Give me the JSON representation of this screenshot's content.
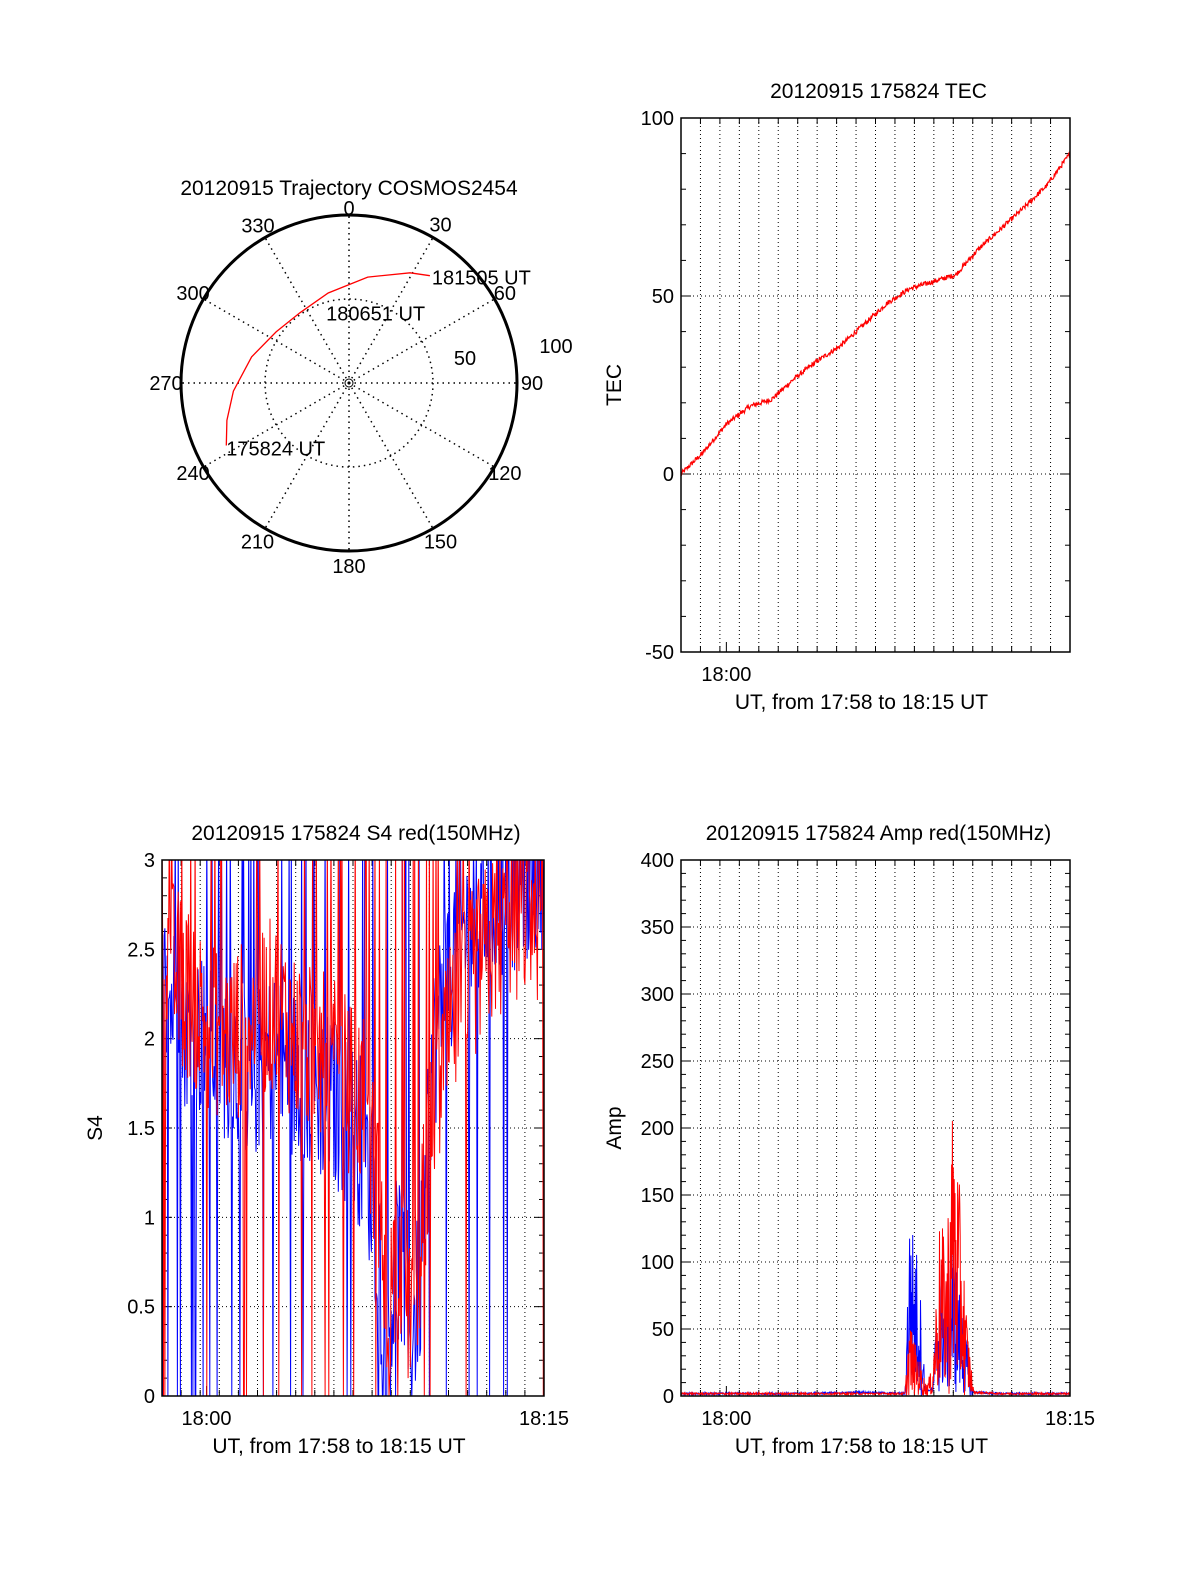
{
  "colors": {
    "red": "#ff0000",
    "blue": "#0000ff",
    "axis": "#000000",
    "grid": "#000000"
  },
  "chart_data": [
    {
      "type": "polar",
      "title": "20120915 Trajectory COSMOS2454",
      "angle_labels": [
        "0",
        "30",
        "60",
        "90",
        "120",
        "150",
        "180",
        "210",
        "240",
        "270",
        "300",
        "330"
      ],
      "radius_label": "50",
      "radius_max_label": "100",
      "grid": true,
      "series": [
        {
          "color": "red",
          "points": [
            {
              "az": 243,
              "r": 82
            },
            {
              "az": 253,
              "r": 76
            },
            {
              "az": 266,
              "r": 69
            },
            {
              "az": 285,
              "r": 60
            },
            {
              "az": 305,
              "r": 53
            },
            {
              "az": 325,
              "r": 51
            },
            {
              "az": 347,
              "r": 55
            },
            {
              "az": 10,
              "r": 64
            },
            {
              "az": 29,
              "r": 75
            },
            {
              "az": 37,
              "r": 80
            }
          ]
        }
      ],
      "annotations": [
        {
          "text": "181505 UT",
          "az": 37,
          "r": 80
        },
        {
          "text": "180651 UT",
          "az": 342,
          "r": 44
        },
        {
          "text": "175824 UT",
          "az": 243,
          "r": 82
        }
      ]
    },
    {
      "type": "line",
      "title": "20120915 175824 TEC",
      "xlabel": "UT, from 17:58 to 18:15 UT",
      "ylabel": "TEC",
      "xlim": [
        17.967,
        18.25
      ],
      "ylim": [
        -50,
        100
      ],
      "yticks": [
        -50,
        0,
        50,
        100
      ],
      "x_tick_labels": [
        {
          "t": 18.0,
          "label": "18:00"
        }
      ],
      "grid": true,
      "series": [
        {
          "color": "red",
          "x": [
            17.967,
            17.983,
            18.0,
            18.017,
            18.033,
            18.05,
            18.067,
            18.083,
            18.1,
            18.117,
            18.133,
            18.15,
            18.167,
            18.183,
            18.2,
            18.217,
            18.233,
            18.25
          ],
          "y": [
            0,
            6,
            14,
            19,
            21,
            27,
            32,
            36,
            42,
            48,
            52,
            54,
            56,
            63,
            69,
            75,
            81,
            90
          ]
        }
      ]
    },
    {
      "type": "line",
      "title": "20120915 175824 S4 red(150MHz)",
      "xlabel": "UT, from 17:58 to 18:15 UT",
      "ylabel": "S4",
      "xlim": [
        17.967,
        18.25
      ],
      "ylim": [
        0,
        3
      ],
      "yticks": [
        0,
        0.5,
        1,
        1.5,
        2,
        2.5,
        3
      ],
      "x_tick_labels": [
        {
          "t": 18.0,
          "label": "18:00"
        },
        {
          "t": 18.25,
          "label": "18:15"
        }
      ],
      "grid": true,
      "series": [
        {
          "color": "blue",
          "x": [
            17.967,
            17.983,
            18.0,
            18.017,
            18.033,
            18.05,
            18.067,
            18.083,
            18.1,
            18.117,
            18.125,
            18.133,
            18.142,
            18.15,
            18.158,
            18.167,
            18.183,
            18.2,
            18.217,
            18.233,
            18.25
          ],
          "y": [
            2.3,
            2.1,
            2.0,
            1.9,
            1.8,
            1.9,
            1.8,
            1.7,
            1.6,
            1.4,
            1.0,
            0.3,
            0.8,
            0.3,
            0.6,
            1.9,
            2.5,
            2.7,
            2.8,
            2.9,
            3.0
          ]
        },
        {
          "color": "red",
          "x": [
            17.967,
            17.983,
            18.0,
            18.017,
            18.033,
            18.05,
            18.067,
            18.083,
            18.1,
            18.117,
            18.125,
            18.133,
            18.142,
            18.15,
            18.158,
            18.167,
            18.183,
            18.2,
            18.217,
            18.233,
            18.25
          ],
          "y": [
            2.5,
            2.3,
            2.1,
            2.0,
            2.1,
            2.2,
            2.0,
            1.9,
            1.8,
            1.6,
            1.3,
            0.4,
            0.9,
            0.5,
            0.8,
            1.6,
            2.1,
            2.4,
            2.6,
            2.7,
            2.7
          ]
        }
      ]
    },
    {
      "type": "line",
      "title": "20120915 175824 Amp red(150MHz)",
      "xlabel": "UT, from 17:58 to 18:15 UT",
      "ylabel": "Amp",
      "xlim": [
        17.967,
        18.25
      ],
      "ylim": [
        0,
        400
      ],
      "yticks": [
        0,
        50,
        100,
        150,
        200,
        250,
        300,
        350,
        400
      ],
      "x_tick_labels": [
        {
          "t": 18.0,
          "label": "18:00"
        },
        {
          "t": 18.25,
          "label": "18:15"
        }
      ],
      "grid": true,
      "series": [
        {
          "color": "blue",
          "x": [
            17.967,
            18.0,
            18.05,
            18.1,
            18.13,
            18.133,
            18.137,
            18.14,
            18.145,
            18.15,
            18.155,
            18.16,
            18.165,
            18.17,
            18.175,
            18.18,
            18.2,
            18.25
          ],
          "y": [
            1,
            1,
            1,
            2,
            1,
            140,
            120,
            100,
            2,
            5,
            110,
            90,
            120,
            80,
            40,
            2,
            1,
            1
          ]
        },
        {
          "color": "red",
          "x": [
            17.967,
            18.0,
            18.05,
            18.1,
            18.13,
            18.133,
            18.137,
            18.14,
            18.145,
            18.15,
            18.155,
            18.16,
            18.165,
            18.17,
            18.175,
            18.18,
            18.2,
            18.25
          ],
          "y": [
            1,
            1,
            1,
            1,
            1,
            60,
            40,
            30,
            10,
            20,
            130,
            120,
            230,
            150,
            60,
            2,
            1,
            1
          ]
        }
      ]
    }
  ]
}
